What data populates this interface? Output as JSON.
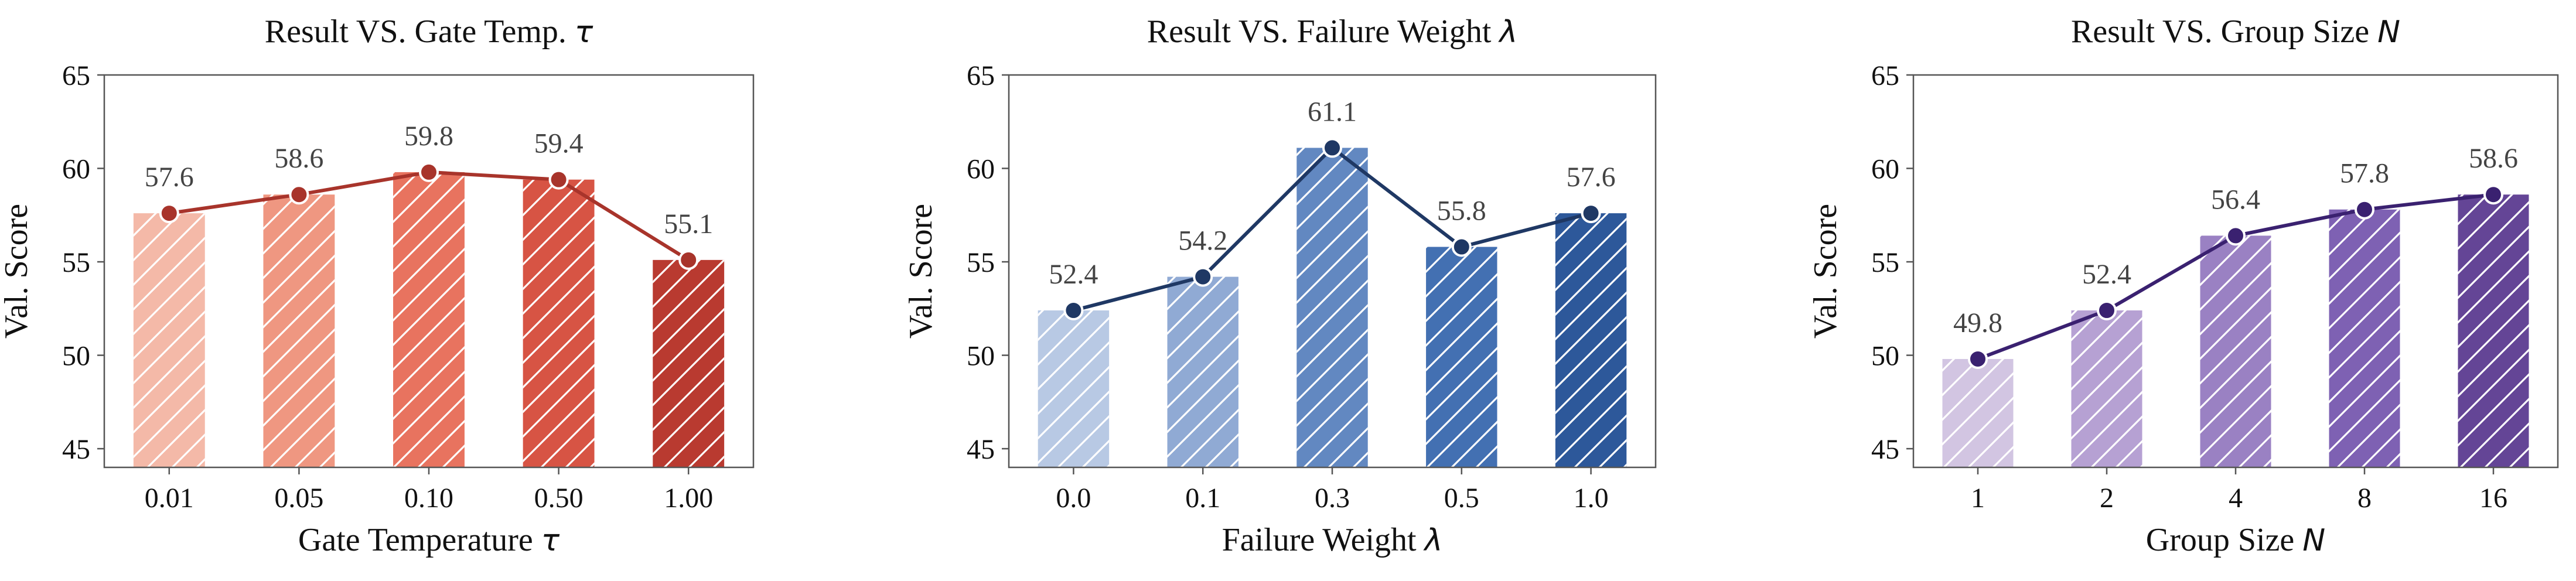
{
  "chart_data": [
    {
      "type": "bar",
      "title": "Result VS. Gate Temp. τ",
      "xlabel": "Gate Temperature τ",
      "ylabel": "Val. Score",
      "ylim": [
        44,
        65
      ],
      "yticks": [
        45,
        50,
        55,
        60,
        65
      ],
      "categories": [
        "0.01",
        "0.05",
        "0.10",
        "0.50",
        "1.00"
      ],
      "values": [
        57.6,
        58.6,
        59.8,
        59.4,
        55.1
      ],
      "value_labels": [
        "57.6",
        "58.6",
        "59.8",
        "59.4",
        "55.1"
      ],
      "bar_colors": [
        "#f4b9a8",
        "#ef9781",
        "#e8735f",
        "#d75444",
        "#b93a30"
      ],
      "line_color": "#a8342b",
      "overlay_line": true,
      "hatch": "diagonal",
      "grid": false
    },
    {
      "type": "bar",
      "title": "Result VS. Failure Weight λ",
      "xlabel": "Failure Weight λ",
      "ylabel": "Val. Score",
      "ylim": [
        44,
        65
      ],
      "yticks": [
        45,
        50,
        55,
        60,
        65
      ],
      "categories": [
        "0.0",
        "0.1",
        "0.3",
        "0.5",
        "1.0"
      ],
      "values": [
        52.4,
        54.2,
        61.1,
        55.8,
        57.6
      ],
      "value_labels": [
        "52.4",
        "54.2",
        "61.1",
        "55.8",
        "57.6"
      ],
      "bar_colors": [
        "#b8c9e4",
        "#90aad4",
        "#6288c1",
        "#4370b2",
        "#2d589a"
      ],
      "line_color": "#1f3864",
      "overlay_line": true,
      "hatch": "diagonal",
      "grid": false
    },
    {
      "type": "bar",
      "title": "Result VS. Group Size N",
      "xlabel": "Group Size N",
      "ylabel": "Val. Score",
      "ylim": [
        44,
        65
      ],
      "yticks": [
        45,
        50,
        55,
        60,
        65
      ],
      "categories": [
        "1",
        "2",
        "4",
        "8",
        "16"
      ],
      "values": [
        49.8,
        52.4,
        56.4,
        57.8,
        58.6
      ],
      "value_labels": [
        "49.8",
        "52.4",
        "56.4",
        "57.8",
        "58.6"
      ],
      "bar_colors": [
        "#d2c5e2",
        "#b6a1d3",
        "#9a81c3",
        "#7e61b3",
        "#644596"
      ],
      "line_color": "#3a2170",
      "overlay_line": true,
      "hatch": "diagonal",
      "grid": false
    }
  ]
}
